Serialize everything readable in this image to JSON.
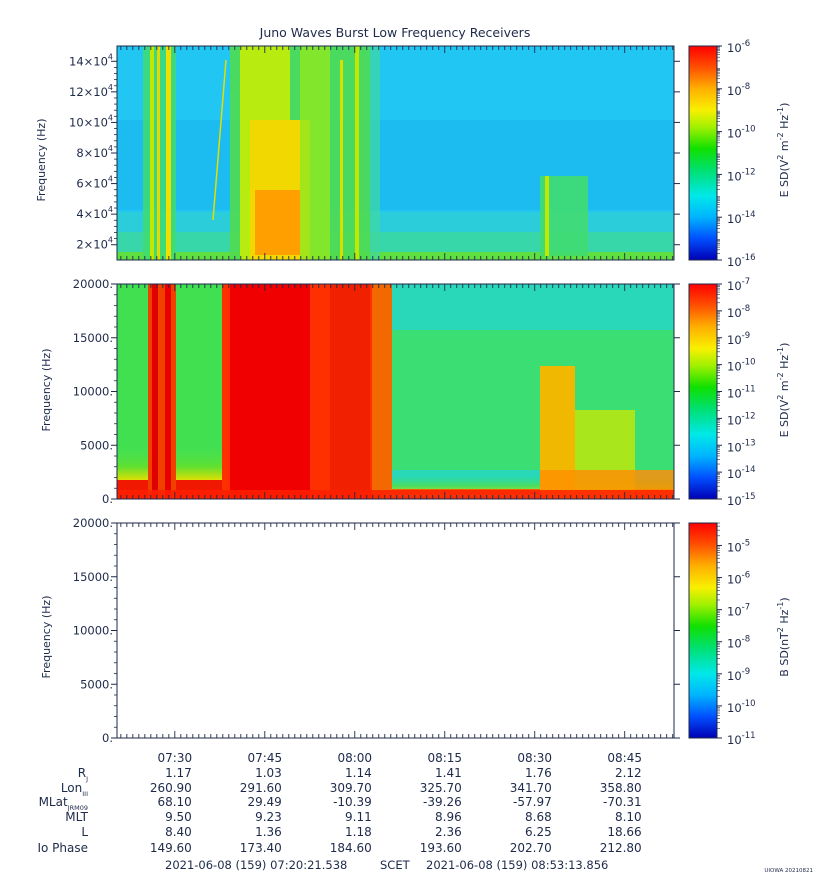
{
  "title": "Juno Waves Burst Low Frequency Receivers",
  "credit": "UIOWA 20210821",
  "chart_data": [
    {
      "type": "heatmap",
      "panel": "top",
      "ylabel": "Frequency (Hz)",
      "ylim": [
        10000,
        150000
      ],
      "ytick_values": [
        20000,
        40000,
        60000,
        80000,
        100000,
        120000,
        140000
      ],
      "ytick_mantissas": [
        "2",
        "4",
        "6",
        "8",
        "10",
        "12",
        "14"
      ],
      "ytick_exponent": "4",
      "colorbar": {
        "label": "E SD(V^2 m^-2 Hz^-1)",
        "label_parts": [
          "E SD(V",
          "2",
          " m",
          "-2",
          " Hz",
          "-1",
          ")"
        ],
        "scale": "log",
        "range": [
          -16,
          -6
        ],
        "tick_exponents": [
          "-6",
          "-8",
          "-10",
          "-12",
          "-14",
          "-16"
        ]
      },
      "description_of_intensity": "background ~1e-13 to 1e-14; broadband bursts to ~1e-9 near 07:26-07:29 and 07:42-07:50; enhancement 08:30-08:33"
    },
    {
      "type": "heatmap",
      "panel": "middle",
      "ylabel": "Frequency (Hz)",
      "ylim": [
        0,
        20000
      ],
      "ytick_values": [
        0,
        5000,
        10000,
        15000,
        20000
      ],
      "ytick_labels": [
        "0.",
        "5000.",
        "10000.",
        "15000.",
        "20000."
      ],
      "colorbar": {
        "label": "E SD(V^2 m^-2 Hz^-1)",
        "label_parts": [
          "E SD(V",
          "2",
          " m",
          "-2",
          " Hz",
          "-1",
          ")"
        ],
        "scale": "log",
        "range": [
          -15,
          -7
        ],
        "tick_exponents": [
          "-7",
          "-8",
          "-9",
          "-10",
          "-11",
          "-12",
          "-13",
          "-14",
          "-15"
        ]
      }
    },
    {
      "type": "heatmap",
      "panel": "bottom",
      "ylabel": "Frequency (Hz)",
      "ylim": [
        0,
        20000
      ],
      "ytick_values": [
        0,
        5000,
        10000,
        15000,
        20000
      ],
      "ytick_labels": [
        "0.",
        "5000.",
        "10000.",
        "15000.",
        "20000."
      ],
      "data": "empty",
      "colorbar": {
        "label": "B SD(nT^2 Hz^-1)",
        "label_parts": [
          "B SD(nT",
          "2",
          " Hz",
          "-1",
          ")"
        ],
        "scale": "log",
        "range": [
          -11,
          -4.3
        ],
        "tick_exponents": [
          "-5",
          "-6",
          "-7",
          "-8",
          "-9",
          "-10",
          "-11"
        ]
      }
    }
  ],
  "x_axis": {
    "range_minutes": [
      440.36,
      533.22
    ],
    "tick_minutes": [
      450,
      465,
      480,
      495,
      510,
      525
    ],
    "tick_labels": [
      "07:30",
      "07:45",
      "08:00",
      "08:15",
      "08:30",
      "08:45"
    ]
  },
  "ephemeris": {
    "rows": [
      {
        "label": "R",
        "sub": "J",
        "values": [
          "1.17",
          "1.03",
          "1.14",
          "1.41",
          "1.76",
          "2.12"
        ]
      },
      {
        "label": "Lon",
        "sub": "III",
        "values": [
          "260.90",
          "291.60",
          "309.70",
          "325.70",
          "341.70",
          "358.80"
        ]
      },
      {
        "label": "MLat",
        "sub": "JRM09",
        "values": [
          "68.10",
          "29.49",
          "-10.39",
          "-39.26",
          "-57.97",
          "-70.31"
        ]
      },
      {
        "label": "MLT",
        "sub": "",
        "values": [
          "9.50",
          "9.23",
          "9.11",
          "8.96",
          "8.68",
          "8.10"
        ]
      },
      {
        "label": "L",
        "sub": "",
        "values": [
          "8.40",
          "1.36",
          "1.18",
          "2.36",
          "6.25",
          "18.66"
        ]
      },
      {
        "label": "Io Phase",
        "sub": "",
        "values": [
          "149.60",
          "173.40",
          "184.60",
          "193.60",
          "202.70",
          "212.80"
        ]
      }
    ]
  },
  "footer": {
    "start": "2021-06-08 (159) 07:20:21.538",
    "mid": "SCET",
    "end": "2021-06-08 (159) 08:53:13.856"
  },
  "colors": {
    "text": "#1e2a4a",
    "background_cyan": "#1ec8f0",
    "colormap": [
      "#0000c8",
      "#0080ff",
      "#00e0ff",
      "#00e060",
      "#20e000",
      "#e0f000",
      "#ffc000",
      "#ff6000",
      "#ff0000"
    ]
  }
}
